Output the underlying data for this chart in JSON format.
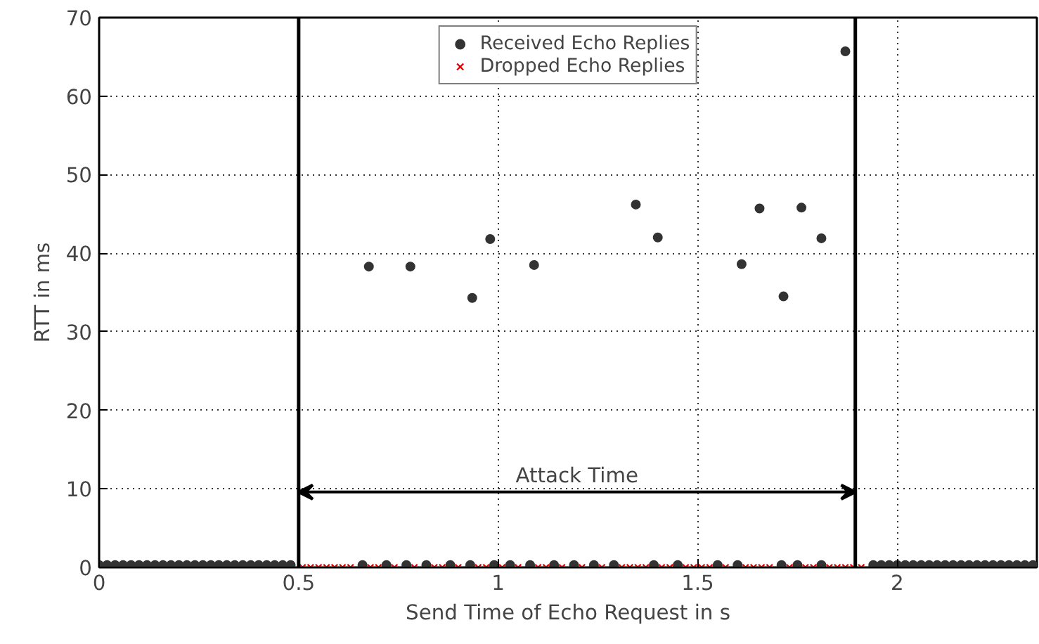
{
  "chart_data": {
    "type": "scatter",
    "xlabel": "Send Time of Echo Request in s",
    "ylabel": "RTT in ms",
    "xlim": [
      0,
      2.35
    ],
    "ylim": [
      0,
      70
    ],
    "xticks": [
      0,
      {
        "value": 0.5,
        "label": "0.5"
      },
      1,
      {
        "value": 1.5,
        "label": "1.5"
      },
      2
    ],
    "yticks": [
      0,
      10,
      20,
      30,
      40,
      50,
      60,
      70
    ],
    "grid": true,
    "legend": "top",
    "line_style": "dotted",
    "ref_lines": [
      {
        "axis": "x",
        "value": 0.5,
        "color": "#000000"
      },
      {
        "axis": "x",
        "value": 1.895,
        "color": "#000000"
      }
    ],
    "annotations": [
      "Attack Time"
    ],
    "series": [
      {
        "name": "Received Echo Replies",
        "color": "#333333",
        "marker": "circle",
        "x": [
          0,
          0.02,
          0.04,
          0.06,
          0.08,
          0.1,
          0.12,
          0.14,
          0.16,
          0.18,
          0.2,
          0.22,
          0.24,
          0.26,
          0.28,
          0.3,
          0.32,
          0.34,
          0.36,
          0.38,
          0.4,
          0.42,
          0.44,
          0.46,
          0.48,
          0.66,
          0.72,
          0.77,
          0.82,
          0.88,
          0.93,
          0.99,
          1.03,
          1.08,
          1.14,
          1.19,
          1.24,
          1.29,
          1.39,
          1.45,
          1.55,
          1.6,
          1.71,
          1.75,
          1.81,
          1.94,
          1.96,
          1.98,
          2.0,
          2.02,
          2.04,
          2.06,
          2.08,
          2.1,
          2.12,
          2.14,
          2.16,
          2.18,
          2.2,
          2.22,
          2.24,
          2.26,
          2.28,
          2.3,
          2.32,
          2.34,
          0.676,
          0.78,
          0.935,
          0.98,
          1.09,
          1.345,
          1.4,
          1.61,
          1.655,
          1.715,
          1.76,
          1.81,
          1.87
        ],
        "values": [
          0.3,
          0.3,
          0.3,
          0.3,
          0.3,
          0.3,
          0.3,
          0.3,
          0.3,
          0.3,
          0.3,
          0.3,
          0.3,
          0.3,
          0.3,
          0.3,
          0.3,
          0.3,
          0.3,
          0.3,
          0.3,
          0.3,
          0.3,
          0.3,
          0.3,
          0.3,
          0.3,
          0.3,
          0.3,
          0.3,
          0.3,
          0.3,
          0.3,
          0.3,
          0.3,
          0.3,
          0.3,
          0.3,
          0.3,
          0.3,
          0.3,
          0.3,
          0.3,
          0.3,
          0.3,
          0.3,
          0.3,
          0.3,
          0.3,
          0.3,
          0.3,
          0.3,
          0.3,
          0.3,
          0.3,
          0.3,
          0.3,
          0.3,
          0.3,
          0.3,
          0.3,
          0.3,
          0.3,
          0.3,
          0.3,
          0.3,
          38.3,
          38.3,
          34.3,
          41.8,
          38.5,
          46.2,
          42.0,
          38.6,
          45.7,
          34.5,
          45.8,
          41.9,
          65.7
        ]
      },
      {
        "name": "Dropped Echo Replies",
        "color": "#e00000",
        "marker": "cross",
        "x": [
          0.51,
          0.53,
          0.55,
          0.57,
          0.59,
          0.61,
          0.63,
          0.68,
          0.7,
          0.74,
          0.79,
          0.84,
          0.86,
          0.9,
          0.95,
          0.97,
          1.01,
          1.05,
          1.1,
          1.12,
          1.16,
          1.21,
          1.26,
          1.31,
          1.33,
          1.35,
          1.37,
          1.41,
          1.43,
          1.47,
          1.49,
          1.51,
          1.53,
          1.57,
          1.62,
          1.64,
          1.66,
          1.68,
          1.73,
          1.77,
          1.79,
          1.83,
          1.85,
          1.87,
          1.89,
          1.91
        ],
        "values": [
          0,
          0,
          0,
          0,
          0,
          0,
          0,
          0,
          0,
          0,
          0,
          0,
          0,
          0,
          0,
          0,
          0,
          0,
          0,
          0,
          0,
          0,
          0,
          0,
          0,
          0,
          0,
          0,
          0,
          0,
          0,
          0,
          0,
          0,
          0,
          0,
          0,
          0,
          0,
          0,
          0,
          0,
          0,
          0,
          0,
          0
        ]
      }
    ]
  }
}
